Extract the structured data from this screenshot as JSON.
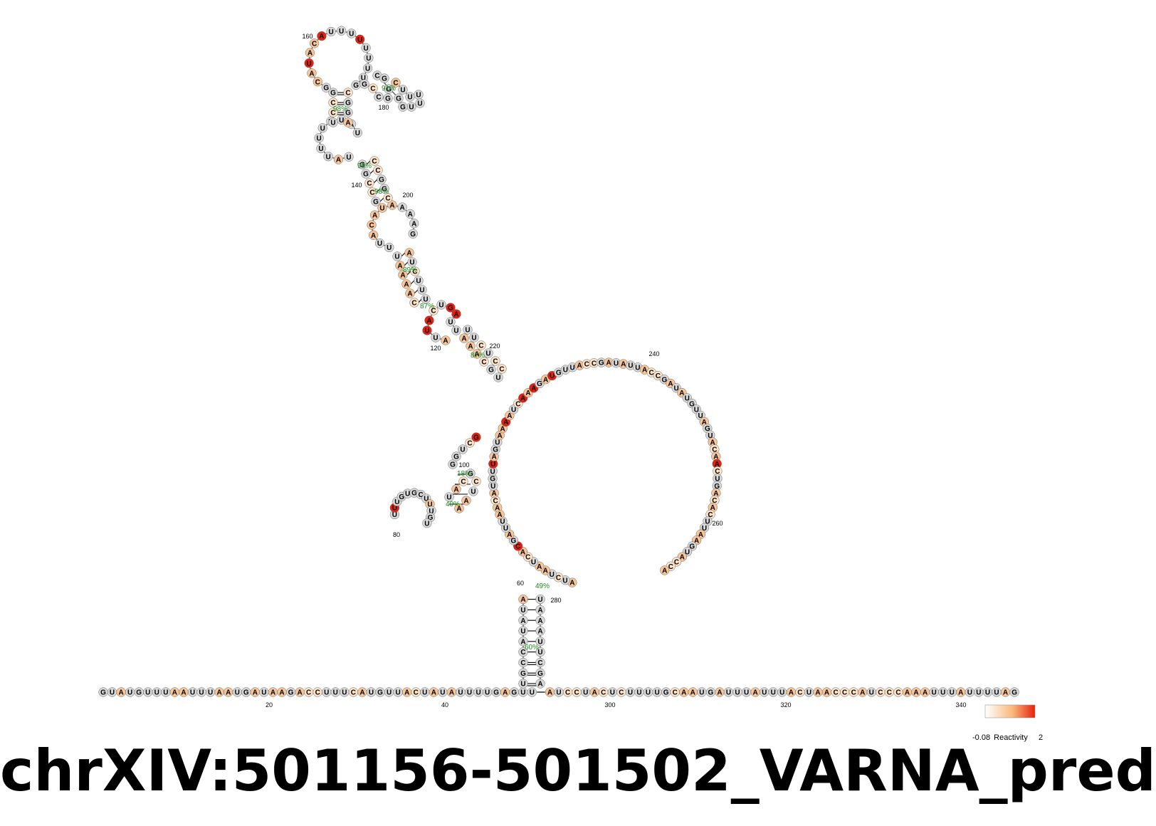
{
  "title": "chrXIV:501156-501502_VARNA_pred",
  "colors": {
    "none": "#d8d8d8",
    "low": "#fde3c8",
    "mid": "#f8c598",
    "high": "#e8200e",
    "backbone": "#555555",
    "pair_line": "#000000",
    "probability_text": "#1a8a1a"
  },
  "linear_sequence": "GUAUGUUUAAUUUAAUGAUAAGACCUUUCAUGUUACUAUAUUUUGAGUU-AUCCUACUCUUUUGCAAUGAUUUAUUUACUAACCCAUCCCAAAUUUAUUUUAG",
  "position_labels": [
    "20",
    "40",
    "60",
    "80",
    "100",
    "120",
    "140",
    "160",
    "180",
    "200",
    "220",
    "240",
    "260",
    "280",
    "300",
    "320",
    "340"
  ],
  "pair_probabilities": [
    "98%",
    "91%",
    "98%",
    "98%",
    "89%",
    "87%",
    "87%",
    "18%",
    "40%",
    "49%",
    "60%"
  ],
  "legend": {
    "label": "Reactivity",
    "min": "-0.08",
    "max": "2"
  }
}
